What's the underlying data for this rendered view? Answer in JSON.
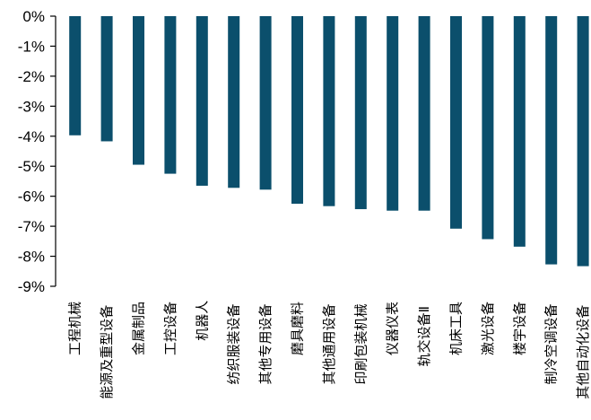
{
  "chart_data": {
    "type": "bar",
    "title": "",
    "xlabel": "",
    "ylabel": "",
    "ylim": [
      -9,
      0
    ],
    "y_ticks": [
      0,
      -1,
      -2,
      -3,
      -4,
      -5,
      -6,
      -7,
      -8,
      -9
    ],
    "y_tick_labels": [
      "0%",
      "-1%",
      "-2%",
      "-3%",
      "-4%",
      "-5%",
      "-6%",
      "-7%",
      "-8%",
      "-9%"
    ],
    "grid": false,
    "legend": "none",
    "bar_color": "#0b4f6c",
    "categories": [
      "工程机械",
      "能源及重型设备",
      "金属制品",
      "工控设备",
      "机器人",
      "纺织服装设备",
      "其他专用设备",
      "磨具磨料",
      "其他通用设备",
      "印刷包装机械",
      "仪器仪表",
      "轨交设备Ⅱ",
      "机床工具",
      "激光设备",
      "楼宇设备",
      "制冷空调设备",
      "其他自动化设备"
    ],
    "values": [
      -3.97,
      -4.17,
      -4.95,
      -5.25,
      -5.65,
      -5.72,
      -5.78,
      -6.25,
      -6.33,
      -6.43,
      -6.48,
      -6.48,
      -7.08,
      -7.43,
      -7.68,
      -8.27,
      -8.33
    ]
  }
}
